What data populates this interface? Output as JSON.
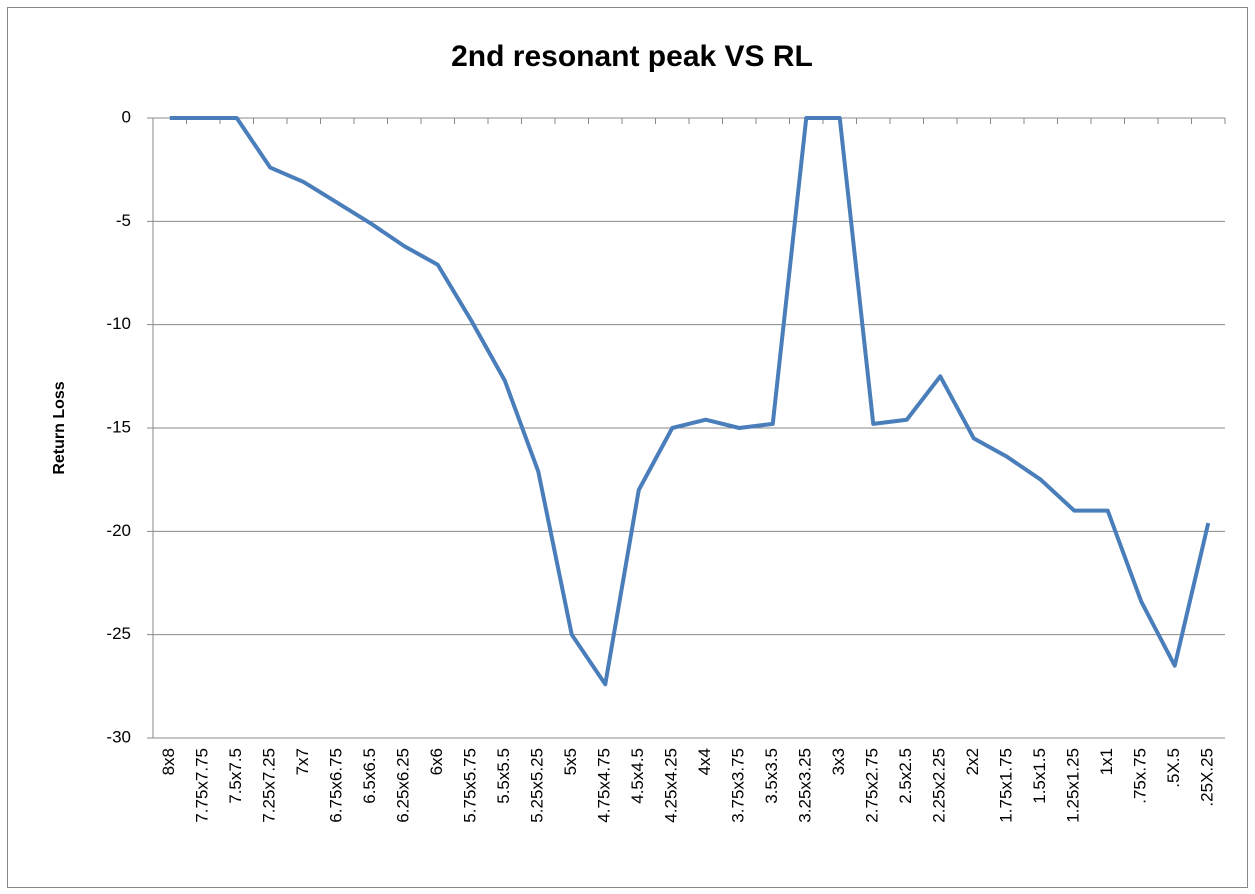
{
  "chart_data": {
    "type": "line",
    "title": "2nd resonant peak VS RL",
    "y_label": "Return Loss",
    "categories": [
      "8x8",
      "7.75x7.75",
      "7.5x7.5",
      "7.25x7.25",
      "7x7",
      "6.75x6.75",
      "6.5x6.5",
      "6.25x6.25",
      "6x6",
      "5.75x5.75",
      "5.5x5.5",
      "5.25x5.25",
      "5x5",
      "4.75x4.75",
      "4.5x4.5",
      "4.25x4.25",
      "4x4",
      "3.75x3.75",
      "3.5x3.5",
      "3.25x3.25",
      "3x3",
      "2.75x2.75",
      "2.5x2.5",
      "2.25x2.25",
      "2x2",
      "1.75x1.75",
      "1.5x1.5",
      "1.25x1.25",
      "1x1",
      ".75x.75",
      ".5X.5",
      ".25X.25"
    ],
    "values": [
      0,
      0,
      0,
      -2.4,
      -3.1,
      -4.1,
      -5.1,
      -6.2,
      -7.1,
      -9.8,
      -12.7,
      -17.1,
      -25,
      -27.4,
      -18,
      -15,
      -14.6,
      -15,
      -14.8,
      0,
      0,
      -14.8,
      -14.6,
      -12.5,
      -15.5,
      -16.4,
      -17.5,
      -19,
      -19,
      -23.4,
      -26.5,
      -19.6
    ],
    "color": "#4a7ebb",
    "ylim": [
      -30,
      0
    ],
    "yticks": [
      -30,
      -25,
      -20,
      -15,
      -10,
      -5,
      0
    ],
    "grid": true
  }
}
